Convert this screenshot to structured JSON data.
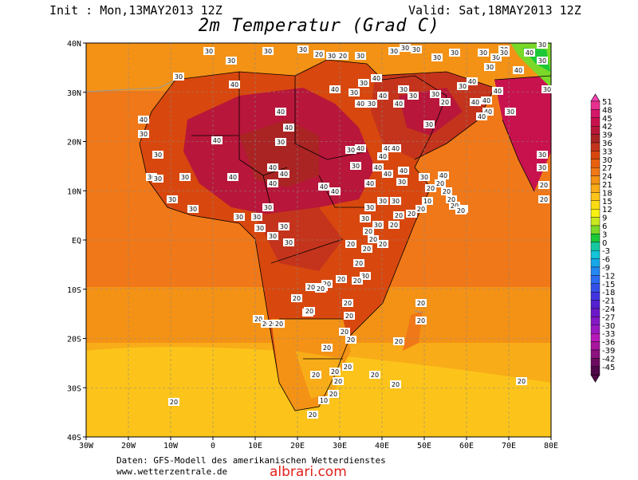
{
  "header": {
    "init_text": "Init : Mon,13MAY2013 12Z",
    "valid_text": "Valid: Sat,18MAY2013 12Z",
    "title": "2m Temperatur (Grad C)"
  },
  "axes": {
    "lon_labels": [
      "30W",
      "20W",
      "10W",
      "0",
      "10E",
      "20E",
      "30E",
      "40E",
      "50E",
      "60E",
      "70E",
      "80E"
    ],
    "lat_labels": [
      "40N",
      "30N",
      "20N",
      "10N",
      "EQ",
      "10S",
      "20S",
      "30S",
      "40S"
    ]
  },
  "colorbar": {
    "levels": [
      51,
      48,
      45,
      42,
      39,
      36,
      33,
      30,
      27,
      24,
      21,
      18,
      15,
      12,
      9,
      6,
      3,
      0,
      -3,
      -6,
      -9,
      -12,
      -15,
      -18,
      -21,
      -24,
      -27,
      -30,
      -33,
      -36,
      -39,
      -42,
      -45
    ],
    "colors": [
      "#f542b0",
      "#e8308e",
      "#d4186a",
      "#c8124e",
      "#b8163a",
      "#aa2424",
      "#c4341c",
      "#d8480e",
      "#e86010",
      "#f07818",
      "#f49216",
      "#f8ac18",
      "#fcc41a",
      "#fcdc14",
      "#f8f014",
      "#c8e820",
      "#7ad828",
      "#1cc838",
      "#16c8a0",
      "#14c4d8",
      "#18a8e8",
      "#2488f0",
      "#2c6cf0",
      "#3450e8",
      "#4234e0",
      "#5420d0",
      "#6c18c8",
      "#8418c4",
      "#9c18c0",
      "#b81aba",
      "#a8169e",
      "#8c1280",
      "#6c0c60",
      "#500848"
    ]
  },
  "contour_labels": [
    "20",
    "20",
    "20",
    "20",
    "20",
    "20",
    "30",
    "30",
    "30",
    "30",
    "30",
    "30",
    "40",
    "40",
    "40",
    "40",
    "40",
    "20",
    "40",
    "40",
    "40",
    "30",
    "30",
    "30",
    "40",
    "40",
    "30",
    "30",
    "40",
    "40",
    "30",
    "40",
    "40",
    "30",
    "30",
    "30",
    "30",
    "20",
    "40",
    "40",
    "40",
    "40",
    "40",
    "30",
    "30",
    "40",
    "30",
    "40",
    "40",
    "40",
    "30",
    "30",
    "40",
    "40",
    "40",
    "40",
    "40",
    "30",
    "30",
    "30",
    "30",
    "30",
    "30",
    "40",
    "40",
    "40",
    "40",
    "40",
    "40",
    "40",
    "40",
    "40",
    "30",
    "30",
    "40",
    "30",
    "30",
    "30",
    "30",
    "30",
    "30",
    "30",
    "30",
    "30",
    "30",
    "30",
    "30",
    "30",
    "30",
    "30",
    "30",
    "30",
    "20",
    "20",
    "20",
    "20",
    "30",
    "20",
    "20",
    "30",
    "20",
    "20",
    "20",
    "20",
    "20",
    "20",
    "20",
    "20",
    "20",
    "20",
    "20",
    "20",
    "20",
    "20",
    "20",
    "20",
    "20",
    "20",
    "20",
    "20",
    "20",
    "20",
    "10",
    "20",
    "20",
    "20",
    "20",
    "20",
    "20",
    "20",
    "20",
    "20",
    "20",
    "20",
    "20",
    "20",
    "20",
    "10",
    "20",
    "20",
    "20",
    "20",
    "20",
    "20",
    "30",
    "30",
    "30",
    "30",
    "30",
    "30",
    "20",
    "20",
    "30",
    "30",
    "30",
    "30",
    "30",
    "30",
    "30",
    "30",
    "30",
    "30"
  ],
  "footer": {
    "line1": "Daten: GFS-Modell des amerikanischen Wetterdienstes",
    "line2": "www.wetterzentrale.de",
    "watermark": "albrari.com"
  }
}
